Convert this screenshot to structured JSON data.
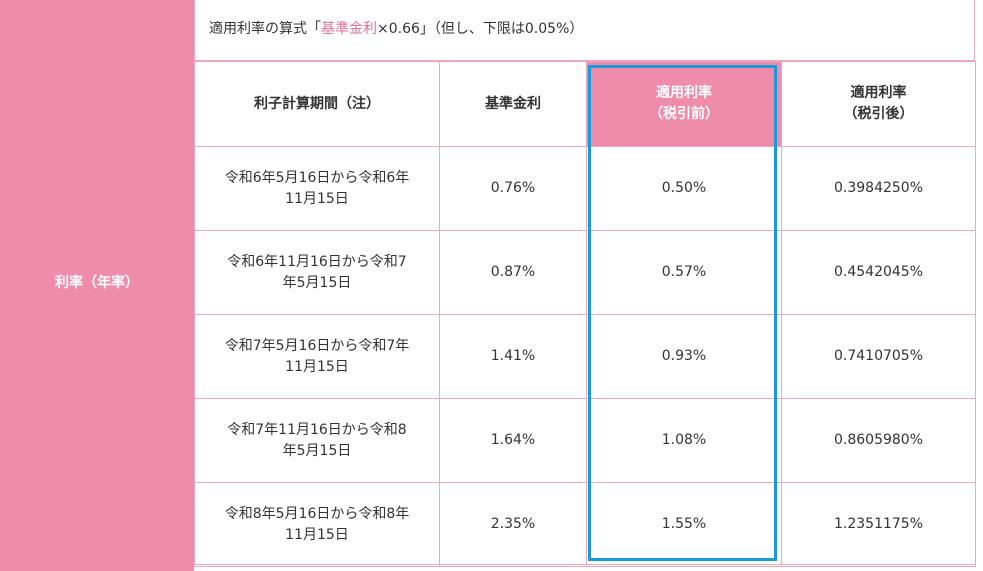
{
  "left_header": {
    "label": "利率（年率）"
  },
  "formula": {
    "prefix": "適用利率の算式「",
    "accent": "基準金利",
    "suffix": "×0.66」（但し、下限は0.05%）"
  },
  "colors": {
    "pink": "#f08cab",
    "accent_text": "#e0739a",
    "border": "#e8a9bd",
    "highlight": "#1a9bd9"
  },
  "table": {
    "headers": [
      {
        "line1": "利子計算期間（注）",
        "line2": ""
      },
      {
        "line1": "基準金利",
        "line2": ""
      },
      {
        "line1": "適用利率",
        "line2": "（税引前）"
      },
      {
        "line1": "適用利率",
        "line2": "（税引後）"
      }
    ],
    "rows": [
      {
        "period_line1": "令和6年5月16日から令和6年",
        "period_line2": "11月15日",
        "base_rate": "0.76%",
        "pre_tax": "0.50%",
        "post_tax": "0.3984250%"
      },
      {
        "period_line1": "令和6年11月16日から令和7",
        "period_line2": "年5月15日",
        "base_rate": "0.87%",
        "pre_tax": "0.57%",
        "post_tax": "0.4542045%"
      },
      {
        "period_line1": "令和7年5月16日から令和7年",
        "period_line2": "11月15日",
        "base_rate": "1.41%",
        "pre_tax": "0.93%",
        "post_tax": "0.7410705%"
      },
      {
        "period_line1": "令和7年11月16日から令和8",
        "period_line2": "年5月15日",
        "base_rate": "1.64%",
        "pre_tax": "1.08%",
        "post_tax": "0.8605980%"
      },
      {
        "period_line1": "令和8年5月16日から令和8年",
        "period_line2": "11月15日",
        "base_rate": "2.35%",
        "pre_tax": "1.55%",
        "post_tax": "1.2351175%"
      }
    ]
  }
}
